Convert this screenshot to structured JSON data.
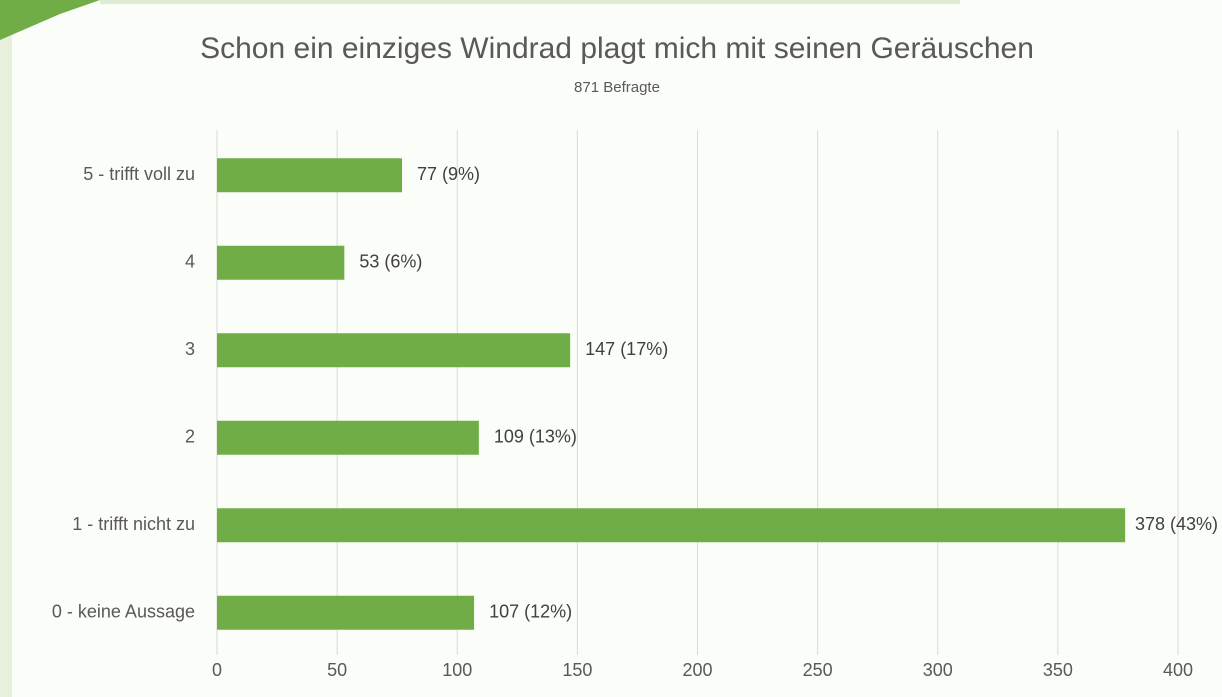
{
  "chart_data": {
    "type": "hbar",
    "title": "Schon ein einziges Windrad plagt mich mit seinen Geräuschen",
    "subtitle": "871 Befragte",
    "categories": [
      "5 - trifft voll zu",
      "4",
      "3",
      "2",
      "1 - trifft nicht zu",
      "0 - keine Aussage"
    ],
    "values": [
      77,
      53,
      147,
      109,
      378,
      107
    ],
    "value_labels": [
      "77 (9%)",
      "53 (6%)",
      "147 (17%)",
      "109 (13%)",
      "378 (43%)",
      "107 (12%)"
    ],
    "color": "#70ad47",
    "xlim": [
      0,
      400
    ],
    "xticks": [
      0,
      50,
      100,
      150,
      200,
      250,
      300,
      350,
      400
    ],
    "grid": true
  }
}
